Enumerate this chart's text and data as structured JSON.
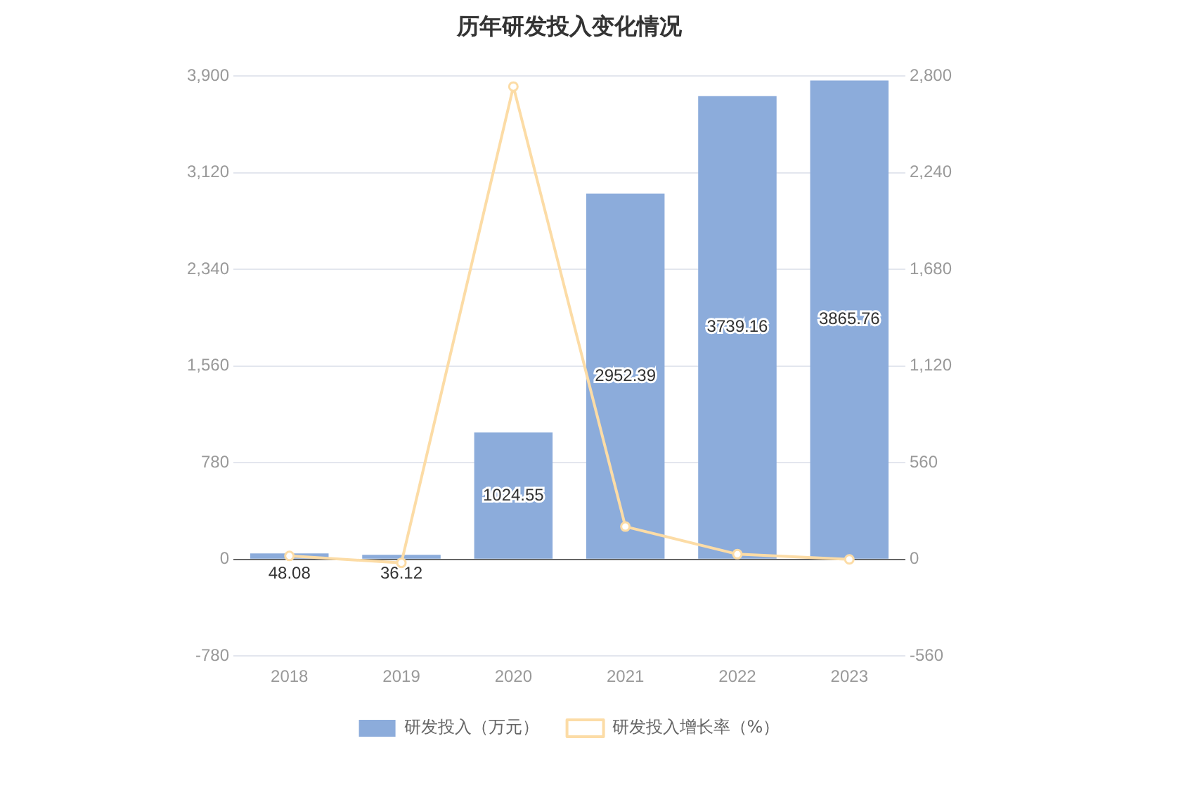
{
  "chart_data": {
    "type": "bar",
    "title": "历年研发投入变化情况",
    "categories": [
      "2018",
      "2019",
      "2020",
      "2021",
      "2022",
      "2023"
    ],
    "series": [
      {
        "name": "研发投入（万元）",
        "color": "#8cacdb",
        "values": [
          48.08,
          36.12,
          1024.55,
          2952.39,
          3739.16,
          3865.76
        ],
        "value_labels": [
          "48.08",
          "36.12",
          "1024.55",
          "2952.39",
          "3739.16",
          "3865.76"
        ]
      },
      {
        "name": "研发投入增长率（%）",
        "type": "line",
        "axis": "y2",
        "color": "#fcdca6",
        "values": [
          20,
          -20,
          2740,
          190,
          30,
          0
        ]
      }
    ],
    "ylim": [
      -780,
      3900
    ],
    "yticks": [
      {
        "value": -780,
        "label": "-780"
      },
      0,
      {
        "value": 780,
        "label": "780"
      },
      {
        "value": 1560,
        "label": "1,560"
      },
      {
        "value": 2340,
        "label": "2,340"
      },
      {
        "value": 3120,
        "label": "3,120"
      },
      {
        "value": 3900,
        "label": "3,900"
      }
    ],
    "y2lim": [
      -560,
      2800
    ],
    "y2ticks": [
      {
        "value": -560,
        "label": "-560"
      },
      0,
      {
        "value": 560,
        "label": "560"
      },
      {
        "value": 1120,
        "label": "1,120"
      },
      {
        "value": 1680,
        "label": "1,680"
      },
      {
        "value": 2240,
        "label": "2,240"
      },
      {
        "value": 2800,
        "label": "2,800"
      }
    ],
    "grid": "y",
    "legend": "bottom",
    "marker": "circle",
    "line_style": "solid"
  }
}
